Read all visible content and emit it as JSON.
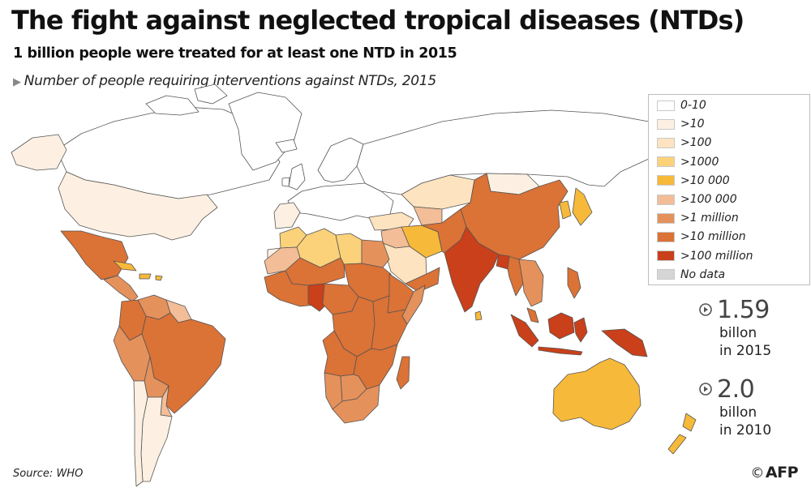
{
  "title": "The fight against neglected tropical diseases (NTDs)",
  "subtitle": "1 billion people were treated for at least one NTD in 2015",
  "caption": "Number of people requiring interventions against NTDs, 2015",
  "legend": {
    "items": [
      {
        "label": "0-10",
        "color": "#ffffff"
      },
      {
        "label": ">10",
        "color": "#fdf0e2"
      },
      {
        "label": ">100",
        "color": "#fde3bf"
      },
      {
        "label": ">1000",
        "color": "#fbd27a"
      },
      {
        "label": ">10 000",
        "color": "#f7b93a"
      },
      {
        "label": ">100 000",
        "color": "#f2bd97"
      },
      {
        "label": ">1 million",
        "color": "#e5915c"
      },
      {
        "label": ">10 million",
        "color": "#db7236"
      },
      {
        "label": ">100 million",
        "color": "#c9401a"
      },
      {
        "label": "No data",
        "color": "#d6d6d6"
      }
    ]
  },
  "stats": [
    {
      "value": "1.59",
      "unit_line1": "billon",
      "unit_line2": "in 2015"
    },
    {
      "value": "2.0",
      "unit_line1": "billon",
      "unit_line2": "in 2010"
    }
  ],
  "source": "Source: WHO",
  "credit": {
    "copyright": "©",
    "agency": "AFP"
  },
  "colors": {
    "border": "#555555",
    "arrow": "#555555"
  },
  "map_regions": [
    {
      "name": "canada",
      "category": "0-10"
    },
    {
      "name": "greenland",
      "category": "0-10"
    },
    {
      "name": "alaska",
      "category": ">10"
    },
    {
      "name": "usa",
      "category": ">10"
    },
    {
      "name": "mexico",
      "category": ">10 million"
    },
    {
      "name": "central-america",
      "category": ">1 million"
    },
    {
      "name": "caribbean",
      "category": ">10 000"
    },
    {
      "name": "venezuela",
      "category": ">1 million"
    },
    {
      "name": "guianas",
      "category": ">100 000"
    },
    {
      "name": "colombia",
      "category": ">10 million"
    },
    {
      "name": "peru",
      "category": ">1 million"
    },
    {
      "name": "brazil",
      "category": ">10 million"
    },
    {
      "name": "bolivia",
      "category": ">1 million"
    },
    {
      "name": "paraguay",
      "category": ">100 000"
    },
    {
      "name": "argentina",
      "category": ">10"
    },
    {
      "name": "chile",
      "category": ">10"
    },
    {
      "name": "europe",
      "category": "0-10"
    },
    {
      "name": "iberia",
      "category": ">10"
    },
    {
      "name": "uk",
      "category": "0-10"
    },
    {
      "name": "iceland",
      "category": "0-10"
    },
    {
      "name": "scandinavia",
      "category": "0-10"
    },
    {
      "name": "turkey",
      "category": ">100"
    },
    {
      "name": "russia",
      "category": "0-10"
    },
    {
      "name": "kazakhstan",
      "category": ">100"
    },
    {
      "name": "mongolia",
      "category": ">10"
    },
    {
      "name": "china",
      "category": ">10 million"
    },
    {
      "name": "korea",
      "category": ">10 000"
    },
    {
      "name": "japan",
      "category": ">10 000"
    },
    {
      "name": "central-asia",
      "category": ">100 000"
    },
    {
      "name": "iran",
      "category": ">10 000"
    },
    {
      "name": "iraq-syria",
      "category": ">100 000"
    },
    {
      "name": "afghanistan-pakistan",
      "category": ">10 million"
    },
    {
      "name": "arabia",
      "category": ">100"
    },
    {
      "name": "yemen-oman",
      "category": ">10 million"
    },
    {
      "name": "india",
      "category": ">100 million"
    },
    {
      "name": "sri-lanka",
      "category": ">10 000"
    },
    {
      "name": "myanmar",
      "category": ">10 million"
    },
    {
      "name": "bangladesh",
      "category": ">100 million"
    },
    {
      "name": "indochina",
      "category": ">1 million"
    },
    {
      "name": "malaysia",
      "category": ">10 million"
    },
    {
      "name": "philippines",
      "category": ">10 million"
    },
    {
      "name": "sumatra",
      "category": ">100 million"
    },
    {
      "name": "borneo",
      "category": ">100 million"
    },
    {
      "name": "java",
      "category": ">100 million"
    },
    {
      "name": "sulawesi",
      "category": ">100 million"
    },
    {
      "name": "new-guinea",
      "category": ">100 million"
    },
    {
      "name": "australia",
      "category": ">10 000"
    },
    {
      "name": "new-zealand",
      "category": ">10 000"
    },
    {
      "name": "morocco",
      "category": ">1000"
    },
    {
      "name": "algeria",
      "category": ">1000"
    },
    {
      "name": "libya",
      "category": ">1000"
    },
    {
      "name": "egypt",
      "category": ">1 million"
    },
    {
      "name": "western-sahara",
      "category": ">10"
    },
    {
      "name": "mauritania",
      "category": ">100 000"
    },
    {
      "name": "mali-niger",
      "category": ">10 million"
    },
    {
      "name": "chad-sudan",
      "category": ">10 million"
    },
    {
      "name": "west-africa-coast",
      "category": ">10 million"
    },
    {
      "name": "nigeria",
      "category": ">100 million"
    },
    {
      "name": "central-africa",
      "category": ">10 million"
    },
    {
      "name": "ethiopia",
      "category": ">10 million"
    },
    {
      "name": "somalia",
      "category": ">1 million"
    },
    {
      "name": "drc",
      "category": ">10 million"
    },
    {
      "name": "east-africa",
      "category": ">10 million"
    },
    {
      "name": "angola",
      "category": ">10 million"
    },
    {
      "name": "zambia-moz",
      "category": ">10 million"
    },
    {
      "name": "namibia",
      "category": ">1 million"
    },
    {
      "name": "botswana",
      "category": ">1 million"
    },
    {
      "name": "south-africa",
      "category": ">1 million"
    },
    {
      "name": "madagascar",
      "category": ">10 million"
    }
  ]
}
